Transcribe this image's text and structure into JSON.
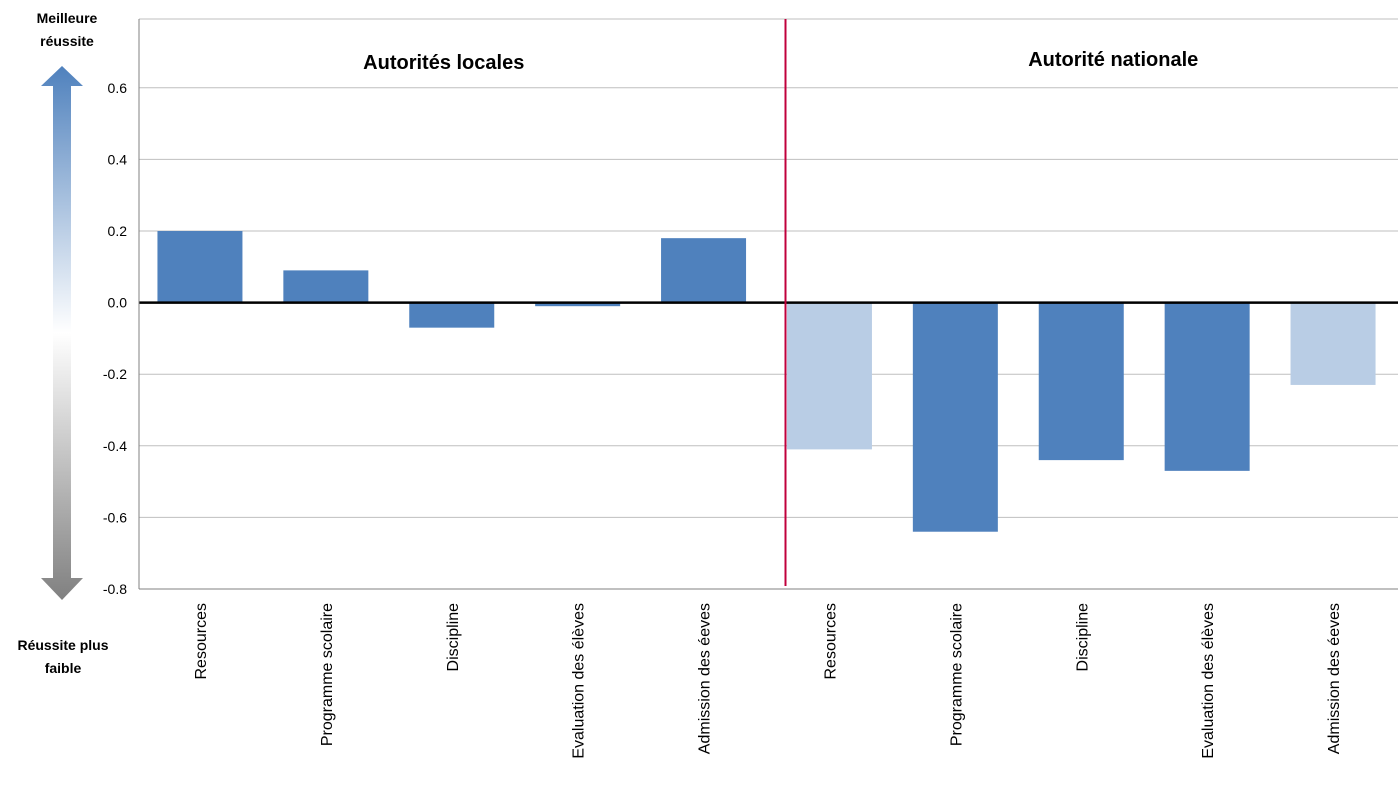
{
  "chart_data": {
    "type": "bar",
    "title": "",
    "xlabel": "",
    "ylabel": "",
    "ylim": [
      -0.8,
      0.7
    ],
    "yticks": [
      0.6,
      0.4,
      0.2,
      0.0,
      -0.2,
      -0.4,
      -0.6,
      -0.8
    ],
    "ytick_labels": [
      "0.6",
      "0.4",
      "0.2",
      "0.0",
      "-0.2",
      "-0.4",
      "-0.6",
      "-0.8"
    ],
    "grid": true,
    "legend": "none",
    "axis_arrow": {
      "top_label_line1": "Meilleure",
      "top_label_line2": "réussite",
      "bottom_label_line1": "Réussite plus",
      "bottom_label_line2": "faible"
    },
    "groups": [
      {
        "label": "Autorités locales",
        "categories": [
          "Resources",
          "Programme scolaire",
          "Discipline",
          "Evaluation des élèves",
          "Admission des éeves"
        ],
        "values": [
          0.2,
          0.09,
          -0.07,
          -0.01,
          0.18
        ],
        "significant": [
          true,
          true,
          true,
          true,
          true
        ]
      },
      {
        "label": "Autorité nationale",
        "categories": [
          "Resources",
          "Programme scolaire",
          "Discipline",
          "Evaluation des élèves",
          "Admission des éeves"
        ],
        "values": [
          -0.41,
          -0.64,
          -0.44,
          -0.47,
          -0.23
        ],
        "significant": [
          false,
          true,
          true,
          true,
          false
        ]
      }
    ],
    "colors": {
      "bar_significant": "#4f81bd",
      "bar_not_significant": "#b9cde5",
      "divider": "#c0003c",
      "gridline": "#bfbfbf",
      "zero_line": "#000000",
      "axis": "#808080",
      "arrow_top": "#4f81bd",
      "arrow_middle": "#ffffff",
      "arrow_bottom": "#808080"
    }
  }
}
